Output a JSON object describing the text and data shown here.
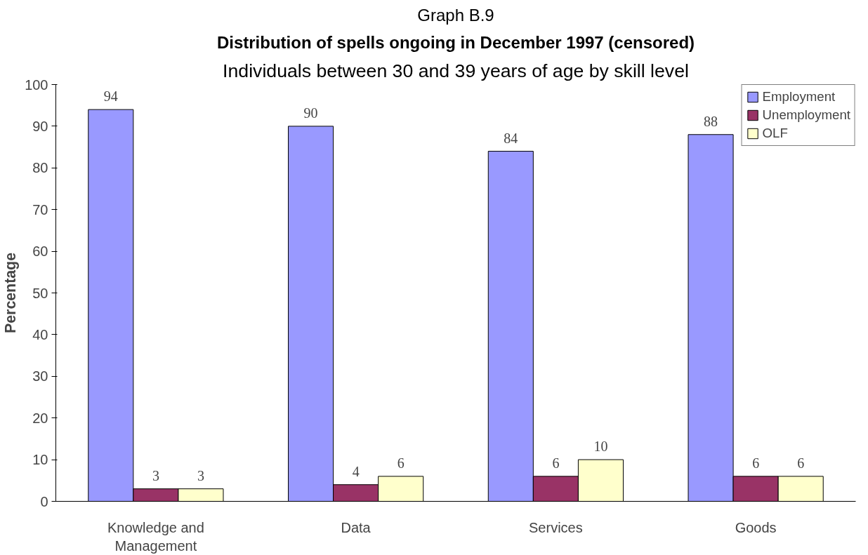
{
  "chart_data": {
    "type": "bar",
    "annotations": [
      "Graph B.9"
    ],
    "title": "Distribution of spells ongoing in December 1997 (censored)",
    "subtitle": "Individuals between 30 and 39 years of age by skill level",
    "ylabel": "Percentage",
    "categories": [
      "Knowledge and Management",
      "Data",
      "Services",
      "Goods"
    ],
    "series": [
      {
        "name": "Employment",
        "color": "#9999ff",
        "values": [
          94,
          90,
          84,
          88
        ]
      },
      {
        "name": "Unemployment",
        "color": "#993366",
        "values": [
          3,
          4,
          6,
          6
        ]
      },
      {
        "name": "OLF",
        "color": "#ffffcc",
        "values": [
          3,
          6,
          10,
          6
        ]
      }
    ],
    "ylim": [
      0,
      100
    ],
    "yticks": [
      0,
      10,
      20,
      30,
      40,
      50,
      60,
      70,
      80,
      90,
      100
    ],
    "data_labels": true,
    "grid": false,
    "legend": "top right"
  }
}
